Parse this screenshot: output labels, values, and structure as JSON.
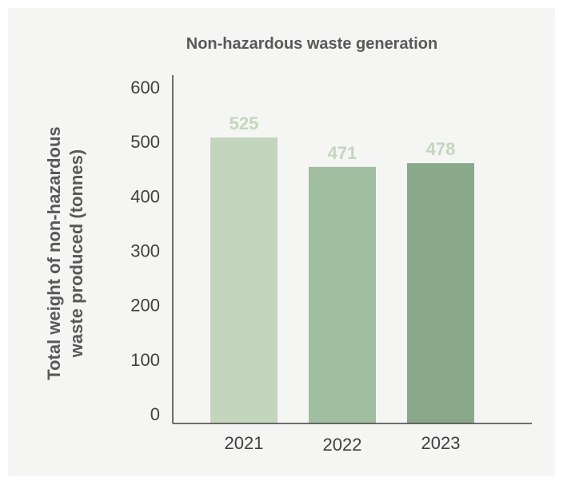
{
  "chart_data": {
    "type": "bar",
    "title": "Non-hazardous waste generation",
    "ylabel": "Total weight of non-hazardous waste produced (tonnes)",
    "xlabel": "",
    "categories": [
      "2021",
      "2022",
      "2023"
    ],
    "values": [
      525,
      471,
      478
    ],
    "data_labels": [
      "525",
      "471",
      "478"
    ],
    "yticks": [
      0,
      100,
      200,
      300,
      400,
      500,
      600
    ],
    "ylim": [
      0,
      630
    ],
    "grid": false,
    "legend": "none",
    "colors": [
      "#c3d6bd",
      "#a2bea0",
      "#8aa98a"
    ],
    "label_color": "#c3d6bd"
  }
}
